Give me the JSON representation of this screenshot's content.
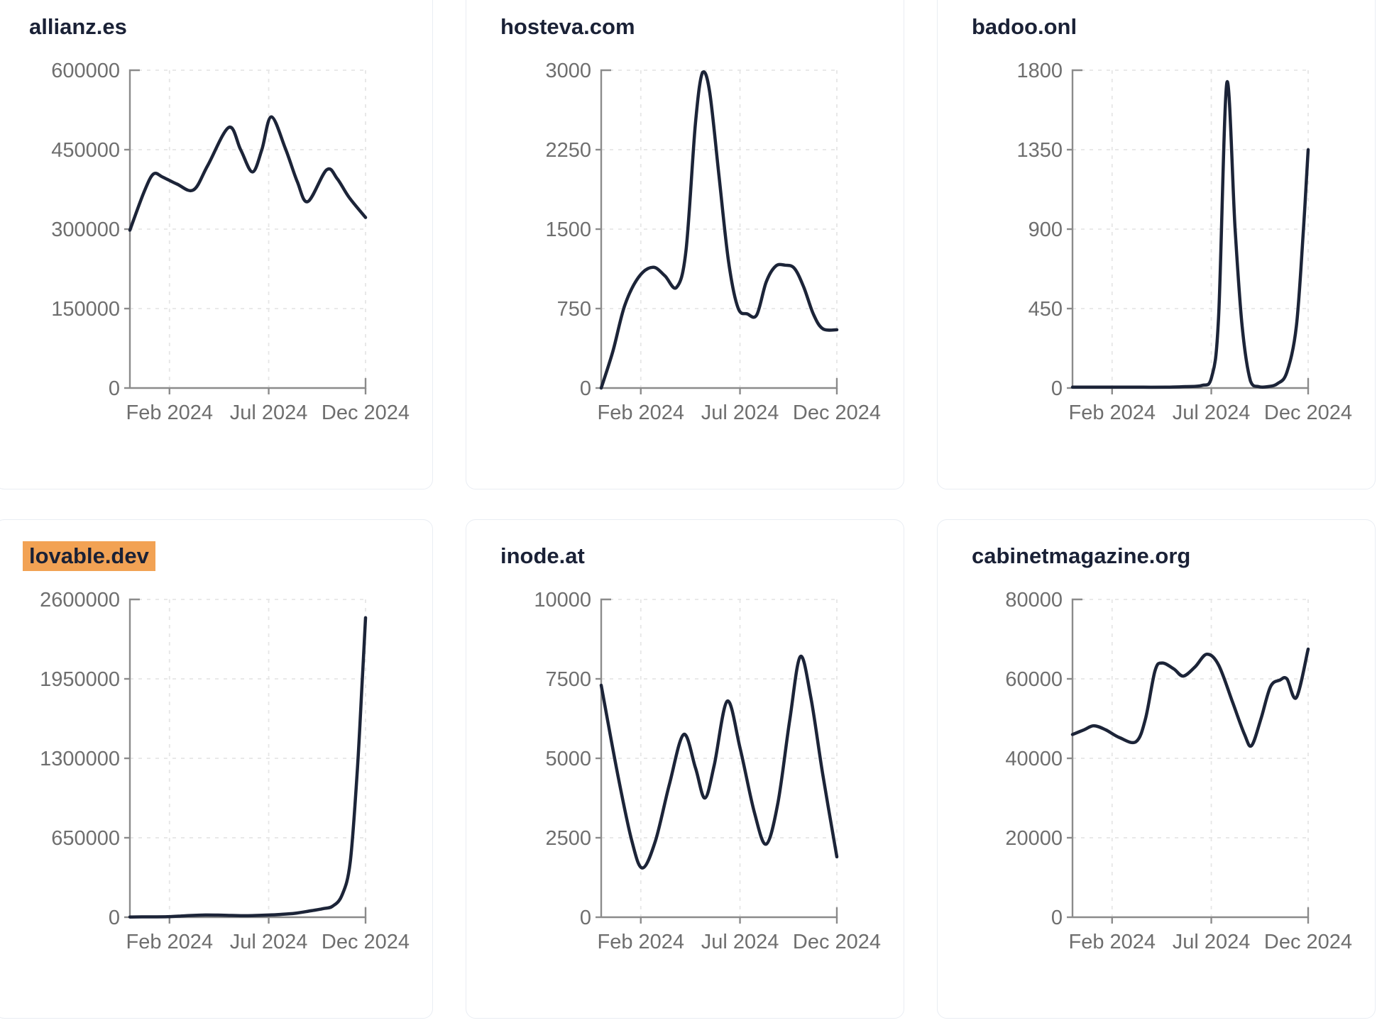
{
  "page": {
    "background": "#ffffff"
  },
  "style": {
    "line_color": "#1c2438",
    "title_color": "#1a2136",
    "axis_color": "#8b8b8b",
    "tick_label_color": "#6e6e6e",
    "gridline_color": "#e6e6e6",
    "card_border_color": "#e9edf3",
    "highlight_color": "#f2a254"
  },
  "chart_data": [
    {
      "type": "line",
      "title": "allianz.es",
      "highlighted": false,
      "ylim": [
        0,
        600000
      ],
      "y_ticks": [
        0,
        150000,
        300000,
        450000,
        600000
      ],
      "x_ticks": [
        {
          "label": "Feb 2024",
          "pos": 0.168
        },
        {
          "label": "Jul 2024",
          "pos": 0.589
        },
        {
          "label": "Dec 2024",
          "pos": 1.0
        }
      ],
      "grid": true,
      "legend": "none",
      "points": [
        [
          0,
          298000
        ],
        [
          0.06,
          370000
        ],
        [
          0.1,
          404000
        ],
        [
          0.14,
          398000
        ],
        [
          0.2,
          385000
        ],
        [
          0.27,
          374000
        ],
        [
          0.33,
          420000
        ],
        [
          0.42,
          492000
        ],
        [
          0.47,
          450000
        ],
        [
          0.52,
          408000
        ],
        [
          0.56,
          450000
        ],
        [
          0.6,
          512000
        ],
        [
          0.66,
          452000
        ],
        [
          0.71,
          390000
        ],
        [
          0.755,
          352000
        ],
        [
          0.835,
          412000
        ],
        [
          0.88,
          395000
        ],
        [
          0.93,
          360000
        ],
        [
          1,
          322000
        ]
      ]
    },
    {
      "type": "line",
      "title": "hosteva.com",
      "highlighted": false,
      "ylim": [
        0,
        3000
      ],
      "y_ticks": [
        0,
        750,
        1500,
        2250,
        3000
      ],
      "x_ticks": [
        {
          "label": "Feb 2024",
          "pos": 0.168
        },
        {
          "label": "Jul 2024",
          "pos": 0.589
        },
        {
          "label": "Dec 2024",
          "pos": 1.0
        }
      ],
      "grid": true,
      "legend": "none",
      "points": [
        [
          0,
          0
        ],
        [
          0.05,
          350
        ],
        [
          0.1,
          780
        ],
        [
          0.16,
          1050
        ],
        [
          0.22,
          1140
        ],
        [
          0.27,
          1060
        ],
        [
          0.32,
          950
        ],
        [
          0.36,
          1300
        ],
        [
          0.4,
          2500
        ],
        [
          0.43,
          2980
        ],
        [
          0.46,
          2800
        ],
        [
          0.5,
          2000
        ],
        [
          0.54,
          1200
        ],
        [
          0.58,
          760
        ],
        [
          0.62,
          700
        ],
        [
          0.66,
          690
        ],
        [
          0.7,
          1000
        ],
        [
          0.74,
          1150
        ],
        [
          0.78,
          1160
        ],
        [
          0.82,
          1130
        ],
        [
          0.86,
          950
        ],
        [
          0.9,
          700
        ],
        [
          0.94,
          560
        ],
        [
          1,
          550
        ]
      ]
    },
    {
      "type": "line",
      "title": "badoo.onl",
      "highlighted": false,
      "ylim": [
        0,
        1800
      ],
      "y_ticks": [
        0,
        450,
        900,
        1350,
        1800
      ],
      "x_ticks": [
        {
          "label": "Feb 2024",
          "pos": 0.168
        },
        {
          "label": "Jul 2024",
          "pos": 0.589
        },
        {
          "label": "Dec 2024",
          "pos": 1.0
        }
      ],
      "grid": true,
      "legend": "none",
      "points": [
        [
          0,
          5
        ],
        [
          0.1,
          5
        ],
        [
          0.2,
          5
        ],
        [
          0.3,
          5
        ],
        [
          0.4,
          5
        ],
        [
          0.48,
          8
        ],
        [
          0.55,
          15
        ],
        [
          0.59,
          60
        ],
        [
          0.62,
          400
        ],
        [
          0.655,
          1730
        ],
        [
          0.69,
          900
        ],
        [
          0.72,
          350
        ],
        [
          0.755,
          40
        ],
        [
          0.79,
          8
        ],
        [
          0.83,
          8
        ],
        [
          0.87,
          25
        ],
        [
          0.91,
          90
        ],
        [
          0.95,
          350
        ],
        [
          0.98,
          900
        ],
        [
          1,
          1350
        ]
      ]
    },
    {
      "type": "line",
      "title": "lovable.dev",
      "highlighted": true,
      "ylim": [
        0,
        2600000
      ],
      "y_ticks": [
        0,
        650000,
        1300000,
        1950000,
        2600000
      ],
      "x_ticks": [
        {
          "label": "Feb 2024",
          "pos": 0.168
        },
        {
          "label": "Jul 2024",
          "pos": 0.589
        },
        {
          "label": "Dec 2024",
          "pos": 1.0
        }
      ],
      "grid": true,
      "legend": "none",
      "points": [
        [
          0,
          2000
        ],
        [
          0.08,
          3000
        ],
        [
          0.16,
          4000
        ],
        [
          0.24,
          12000
        ],
        [
          0.32,
          18000
        ],
        [
          0.4,
          16000
        ],
        [
          0.48,
          12000
        ],
        [
          0.56,
          16000
        ],
        [
          0.63,
          22000
        ],
        [
          0.7,
          32000
        ],
        [
          0.76,
          50000
        ],
        [
          0.82,
          70000
        ],
        [
          0.86,
          90000
        ],
        [
          0.9,
          180000
        ],
        [
          0.935,
          450000
        ],
        [
          0.965,
          1200000
        ],
        [
          0.985,
          1900000
        ],
        [
          1,
          2450000
        ]
      ]
    },
    {
      "type": "line",
      "title": "inode.at",
      "highlighted": false,
      "ylim": [
        0,
        10000
      ],
      "y_ticks": [
        0,
        2500,
        5000,
        7500,
        10000
      ],
      "x_ticks": [
        {
          "label": "Feb 2024",
          "pos": 0.168
        },
        {
          "label": "Jul 2024",
          "pos": 0.589
        },
        {
          "label": "Dec 2024",
          "pos": 1.0
        }
      ],
      "grid": true,
      "legend": "none",
      "points": [
        [
          0,
          7300
        ],
        [
          0.07,
          4500
        ],
        [
          0.13,
          2400
        ],
        [
          0.175,
          1550
        ],
        [
          0.23,
          2400
        ],
        [
          0.29,
          4200
        ],
        [
          0.35,
          5750
        ],
        [
          0.4,
          4700
        ],
        [
          0.44,
          3750
        ],
        [
          0.48,
          4800
        ],
        [
          0.535,
          6800
        ],
        [
          0.59,
          5300
        ],
        [
          0.65,
          3300
        ],
        [
          0.7,
          2300
        ],
        [
          0.75,
          3600
        ],
        [
          0.8,
          6200
        ],
        [
          0.845,
          8200
        ],
        [
          0.89,
          6900
        ],
        [
          0.94,
          4500
        ],
        [
          1,
          1900
        ]
      ]
    },
    {
      "type": "line",
      "title": "cabinetmagazine.org",
      "highlighted": false,
      "ylim": [
        0,
        80000
      ],
      "y_ticks": [
        0,
        20000,
        40000,
        60000,
        80000
      ],
      "x_ticks": [
        {
          "label": "Feb 2024",
          "pos": 0.168
        },
        {
          "label": "Jul 2024",
          "pos": 0.589
        },
        {
          "label": "Dec 2024",
          "pos": 1.0
        }
      ],
      "grid": true,
      "legend": "none",
      "points": [
        [
          0,
          46000
        ],
        [
          0.05,
          47200
        ],
        [
          0.09,
          48200
        ],
        [
          0.14,
          47200
        ],
        [
          0.2,
          45200
        ],
        [
          0.27,
          44200
        ],
        [
          0.31,
          50000
        ],
        [
          0.35,
          62000
        ],
        [
          0.38,
          64000
        ],
        [
          0.43,
          62500
        ],
        [
          0.47,
          60700
        ],
        [
          0.52,
          63000
        ],
        [
          0.57,
          66200
        ],
        [
          0.62,
          63500
        ],
        [
          0.68,
          54000
        ],
        [
          0.73,
          46000
        ],
        [
          0.76,
          43200
        ],
        [
          0.8,
          50000
        ],
        [
          0.84,
          58000
        ],
        [
          0.88,
          59700
        ],
        [
          0.91,
          60000
        ],
        [
          0.95,
          55300
        ],
        [
          1,
          67500
        ]
      ]
    }
  ]
}
